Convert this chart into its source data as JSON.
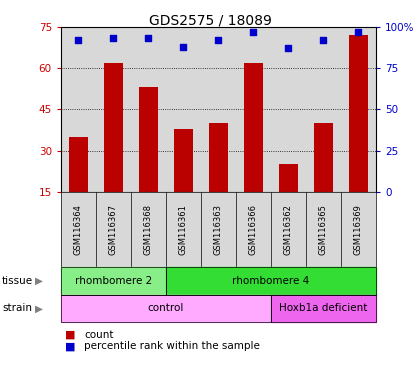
{
  "title": "GDS2575 / 18089",
  "samples": [
    "GSM116364",
    "GSM116367",
    "GSM116368",
    "GSM116361",
    "GSM116363",
    "GSM116366",
    "GSM116362",
    "GSM116365",
    "GSM116369"
  ],
  "counts": [
    35,
    62,
    53,
    38,
    40,
    62,
    25,
    40,
    72
  ],
  "percentile_ranks": [
    92,
    93,
    93,
    88,
    92,
    97,
    87,
    92,
    97
  ],
  "ylim_left": [
    15,
    75
  ],
  "ylim_right": [
    0,
    100
  ],
  "yticks_left": [
    15,
    30,
    45,
    60,
    75
  ],
  "yticks_right": [
    0,
    25,
    50,
    75,
    100
  ],
  "bar_color": "#bb0000",
  "dot_color": "#0000cc",
  "tissue_groups": [
    {
      "label": "rhombomere 2",
      "start": 0,
      "end": 3,
      "color": "#88ee88"
    },
    {
      "label": "rhombomere 4",
      "start": 3,
      "end": 9,
      "color": "#33dd33"
    }
  ],
  "strain_groups": [
    {
      "label": "control",
      "start": 0,
      "end": 6,
      "color": "#ffaaff"
    },
    {
      "label": "Hoxb1a deficient",
      "start": 6,
      "end": 9,
      "color": "#ee66ee"
    }
  ],
  "legend_items": [
    {
      "label": "count",
      "color": "#bb0000"
    },
    {
      "label": "percentile rank within the sample",
      "color": "#0000cc"
    }
  ],
  "plot_bg_color": "#d8d8d8",
  "left_tick_color": "#cc0000",
  "right_tick_color": "#0000cc",
  "title_fontsize": 10,
  "tick_fontsize": 7.5,
  "sample_fontsize": 6,
  "annot_fontsize": 7.5
}
